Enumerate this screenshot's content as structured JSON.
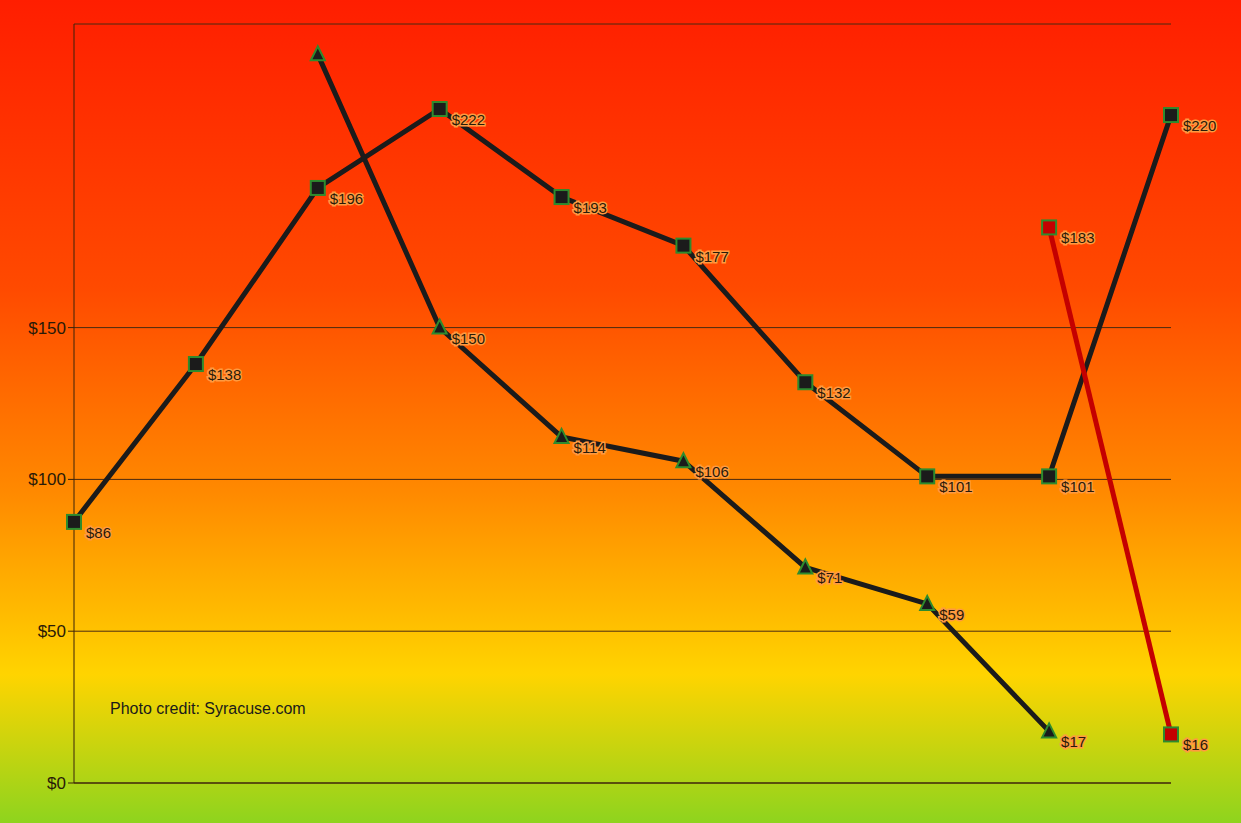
{
  "chart_data": {
    "type": "line",
    "annotation": "Photo credit: Syracuse.com",
    "categories": [
      null,
      null,
      null,
      null,
      null,
      null,
      null,
      null,
      null,
      null
    ],
    "ylim": [
      0,
      250
    ],
    "yticks": [
      {
        "value": 0,
        "label": "$0"
      },
      {
        "value": 50,
        "label": "$50"
      },
      {
        "value": 100,
        "label": "$100"
      },
      {
        "value": 150,
        "label": "$150"
      }
    ],
    "grid": true,
    "tick_labels": "y",
    "data_labels": true,
    "series": [
      {
        "color": "#1b1b1b",
        "marker": "square",
        "line_style": "solid",
        "values": [
          86,
          138,
          196,
          222,
          193,
          177,
          132,
          101,
          101,
          220
        ],
        "value_labels": [
          "$86",
          "$138",
          "$196",
          "$222",
          "$193",
          "$177",
          "$132",
          "$101",
          "$101",
          "$220"
        ]
      },
      {
        "color": "#1b1b1b",
        "marker": "triangle",
        "line_style": "solid",
        "values": [
          null,
          null,
          240,
          150,
          114,
          106,
          71,
          59,
          17,
          null
        ],
        "value_labels": [
          null,
          null,
          null,
          "$150",
          "$114",
          "$106",
          "$71",
          "$59",
          "$17",
          null
        ]
      },
      {
        "color": "#c40000",
        "marker": "square",
        "line_style": "solid",
        "values": [
          null,
          null,
          null,
          null,
          null,
          null,
          null,
          null,
          183,
          16
        ],
        "value_labels": [
          null,
          null,
          null,
          null,
          null,
          null,
          null,
          null,
          "$183",
          "$16"
        ]
      }
    ]
  }
}
